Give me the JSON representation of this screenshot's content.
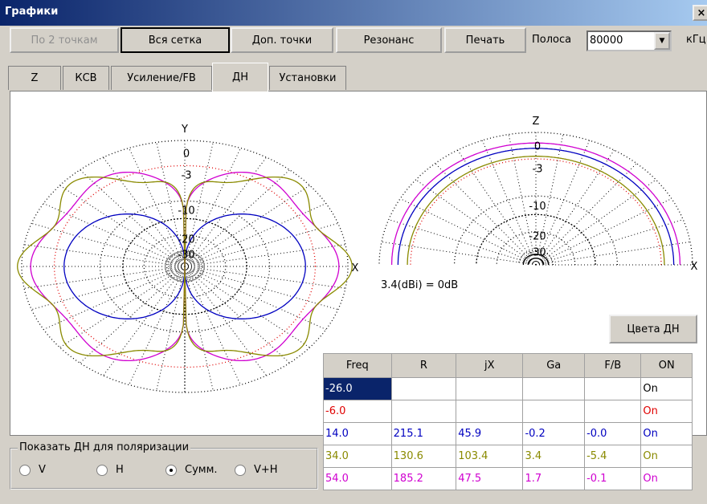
{
  "window": {
    "title": "Графики",
    "close": "×"
  },
  "toolbar": {
    "buttons": [
      "По 2 точкам",
      "Вся сетка",
      "Доп. точки",
      "Резонанс",
      "Печать"
    ],
    "band_label": "Полоса",
    "band_value": "80000",
    "band_unit": "кГц"
  },
  "tabs": [
    "Z",
    "КСВ",
    "Усиление/FB",
    "ДН",
    "Установки"
  ],
  "left_plot": {
    "axis_vertical": "Y",
    "axis_horizontal": "X",
    "rings": [
      "0",
      "-3",
      "-10",
      "-20",
      "-30"
    ]
  },
  "right_plot": {
    "axis_vertical": "Z",
    "axis_horizontal": "X",
    "rings": [
      "0",
      "-3",
      "-10",
      "-20",
      "-30"
    ]
  },
  "gain_note": "3.4(dBi) = 0dB",
  "colors_button": "Цвета ДН",
  "table": {
    "columns": [
      "Freq",
      "R",
      "jX",
      "Ga",
      "F/B",
      "ON"
    ],
    "rows": [
      {
        "color": "#000000",
        "cells": [
          "-26.0",
          null,
          null,
          null,
          null,
          "On"
        ]
      },
      {
        "color": "#e00000",
        "cells": [
          "-6.0",
          null,
          null,
          null,
          null,
          "On"
        ]
      },
      {
        "color": "#0000c0",
        "cells": [
          "14.0",
          "215.1",
          "45.9",
          "-0.2",
          "-0.0",
          "On"
        ]
      },
      {
        "color": "#8a8a00",
        "cells": [
          "34.0",
          "130.6",
          "103.4",
          "3.4",
          "-5.4",
          "On"
        ]
      },
      {
        "color": "#d000d0",
        "cells": [
          "54.0",
          "185.2",
          "47.5",
          "1.7",
          "-0.1",
          "On"
        ]
      }
    ]
  },
  "polarization": {
    "label": "Показать ДН для поляризации",
    "options": [
      "V",
      "H",
      "Сумм.",
      "V+H"
    ]
  }
}
